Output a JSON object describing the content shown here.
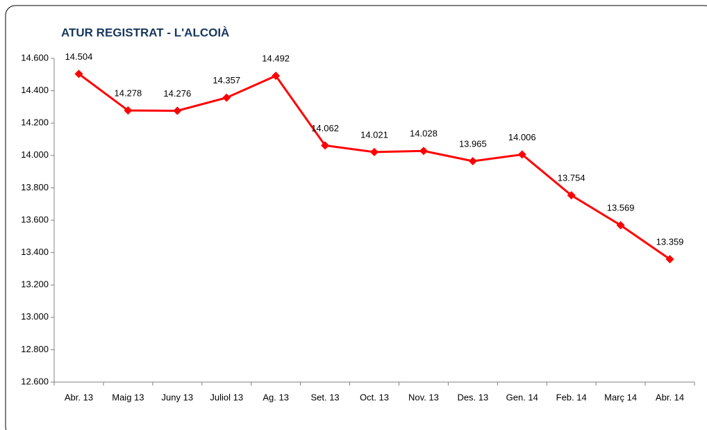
{
  "chart_data": {
    "type": "line",
    "title": "ATUR REGISTRAT - L'ALCOIÀ",
    "categories": [
      "Abr. 13",
      "Maig 13",
      "Juny 13",
      "Juliol 13",
      "Ag. 13",
      "Set. 13",
      "Oct. 13",
      "Nov. 13",
      "Des. 13",
      "Gen. 14",
      "Feb. 14",
      "Març 14",
      "Abr. 14"
    ],
    "series": [
      {
        "color": "#ff0000",
        "values": [
          14504,
          14278,
          14276,
          14357,
          14492,
          14062,
          14021,
          14028,
          13965,
          14006,
          13754,
          13569,
          13359
        ],
        "value_labels": [
          "14.504",
          "14.278",
          "14.276",
          "14.357",
          "14.492",
          "14.062",
          "14.021",
          "14.028",
          "13.965",
          "14.006",
          "13.754",
          "13.569",
          "13.359"
        ]
      }
    ],
    "ylim": [
      12600,
      14600
    ],
    "yticks": [
      {
        "value": 12600,
        "label": "12.600"
      },
      {
        "value": 12800,
        "label": "12.800"
      },
      {
        "value": 13000,
        "label": "13.000"
      },
      {
        "value": 13200,
        "label": "13.200"
      },
      {
        "value": 13400,
        "label": "13.400"
      },
      {
        "value": 13600,
        "label": "13.600"
      },
      {
        "value": 13800,
        "label": "13.800"
      },
      {
        "value": 14000,
        "label": "14.000"
      },
      {
        "value": 14200,
        "label": "14.200"
      },
      {
        "value": 14400,
        "label": "14.400"
      },
      {
        "value": 14600,
        "label": "14.600"
      }
    ]
  }
}
